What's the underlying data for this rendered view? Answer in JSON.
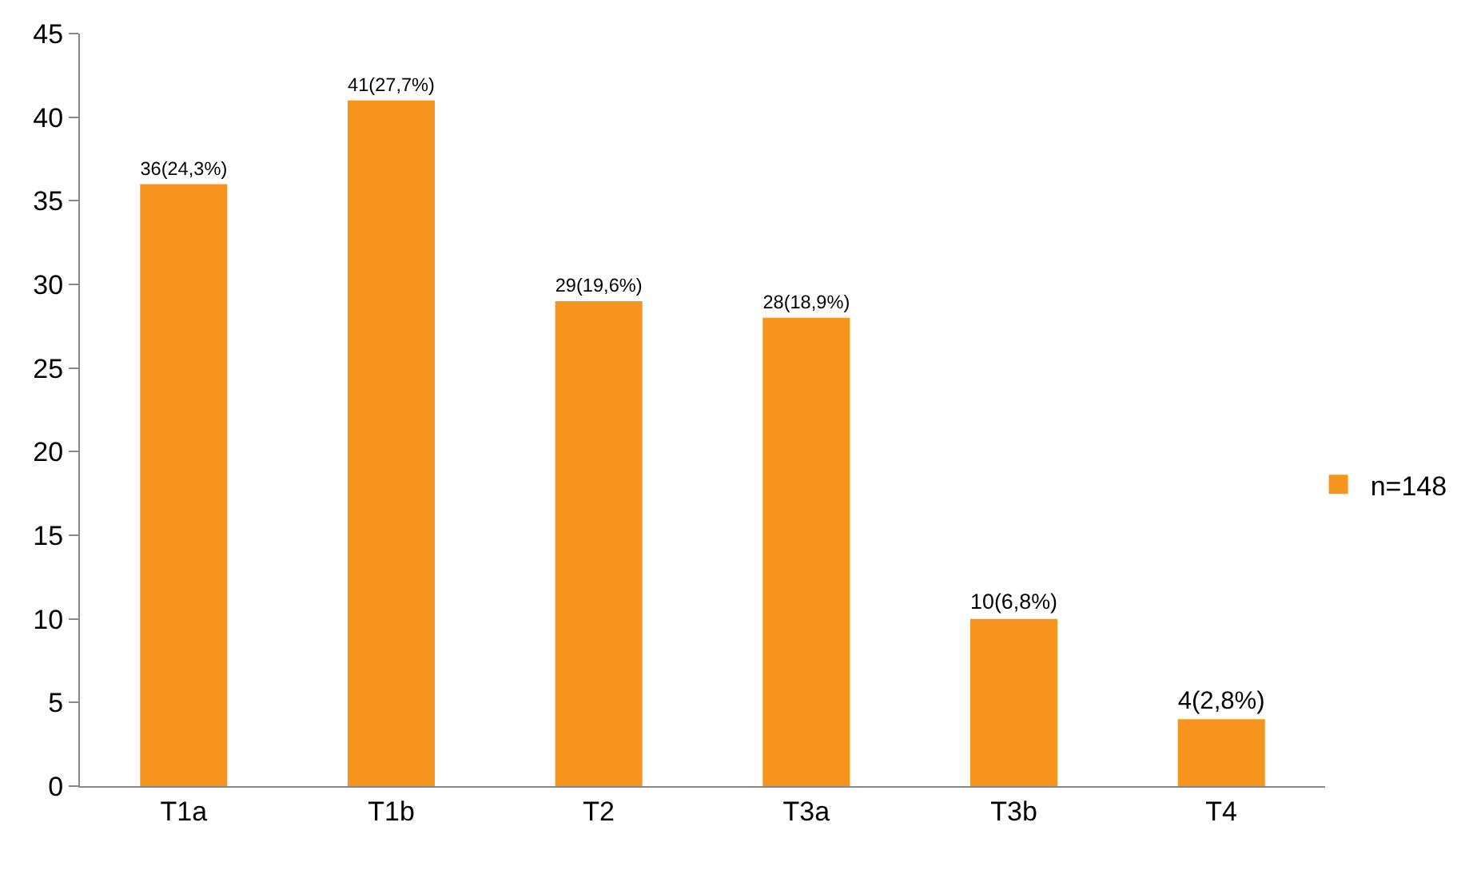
{
  "chart_data": {
    "type": "bar",
    "categories": [
      "T1a",
      "T1b",
      "T2",
      "T3a",
      "T3b",
      "T4"
    ],
    "series": [
      {
        "name": "n=148",
        "color": "#f7941d",
        "values": [
          36,
          41,
          29,
          28,
          10,
          4
        ],
        "value_labels": [
          "36(24,3%)",
          "41(27,7%)",
          "29(19,6%)",
          "28(18,9%)",
          "10(6,8%)",
          "4(2,8%)"
        ]
      }
    ],
    "ylim": [
      0,
      45
    ],
    "yticks": [
      0,
      5,
      10,
      15,
      20,
      25,
      30,
      35,
      40,
      45
    ],
    "grid": false,
    "legend": "right"
  }
}
